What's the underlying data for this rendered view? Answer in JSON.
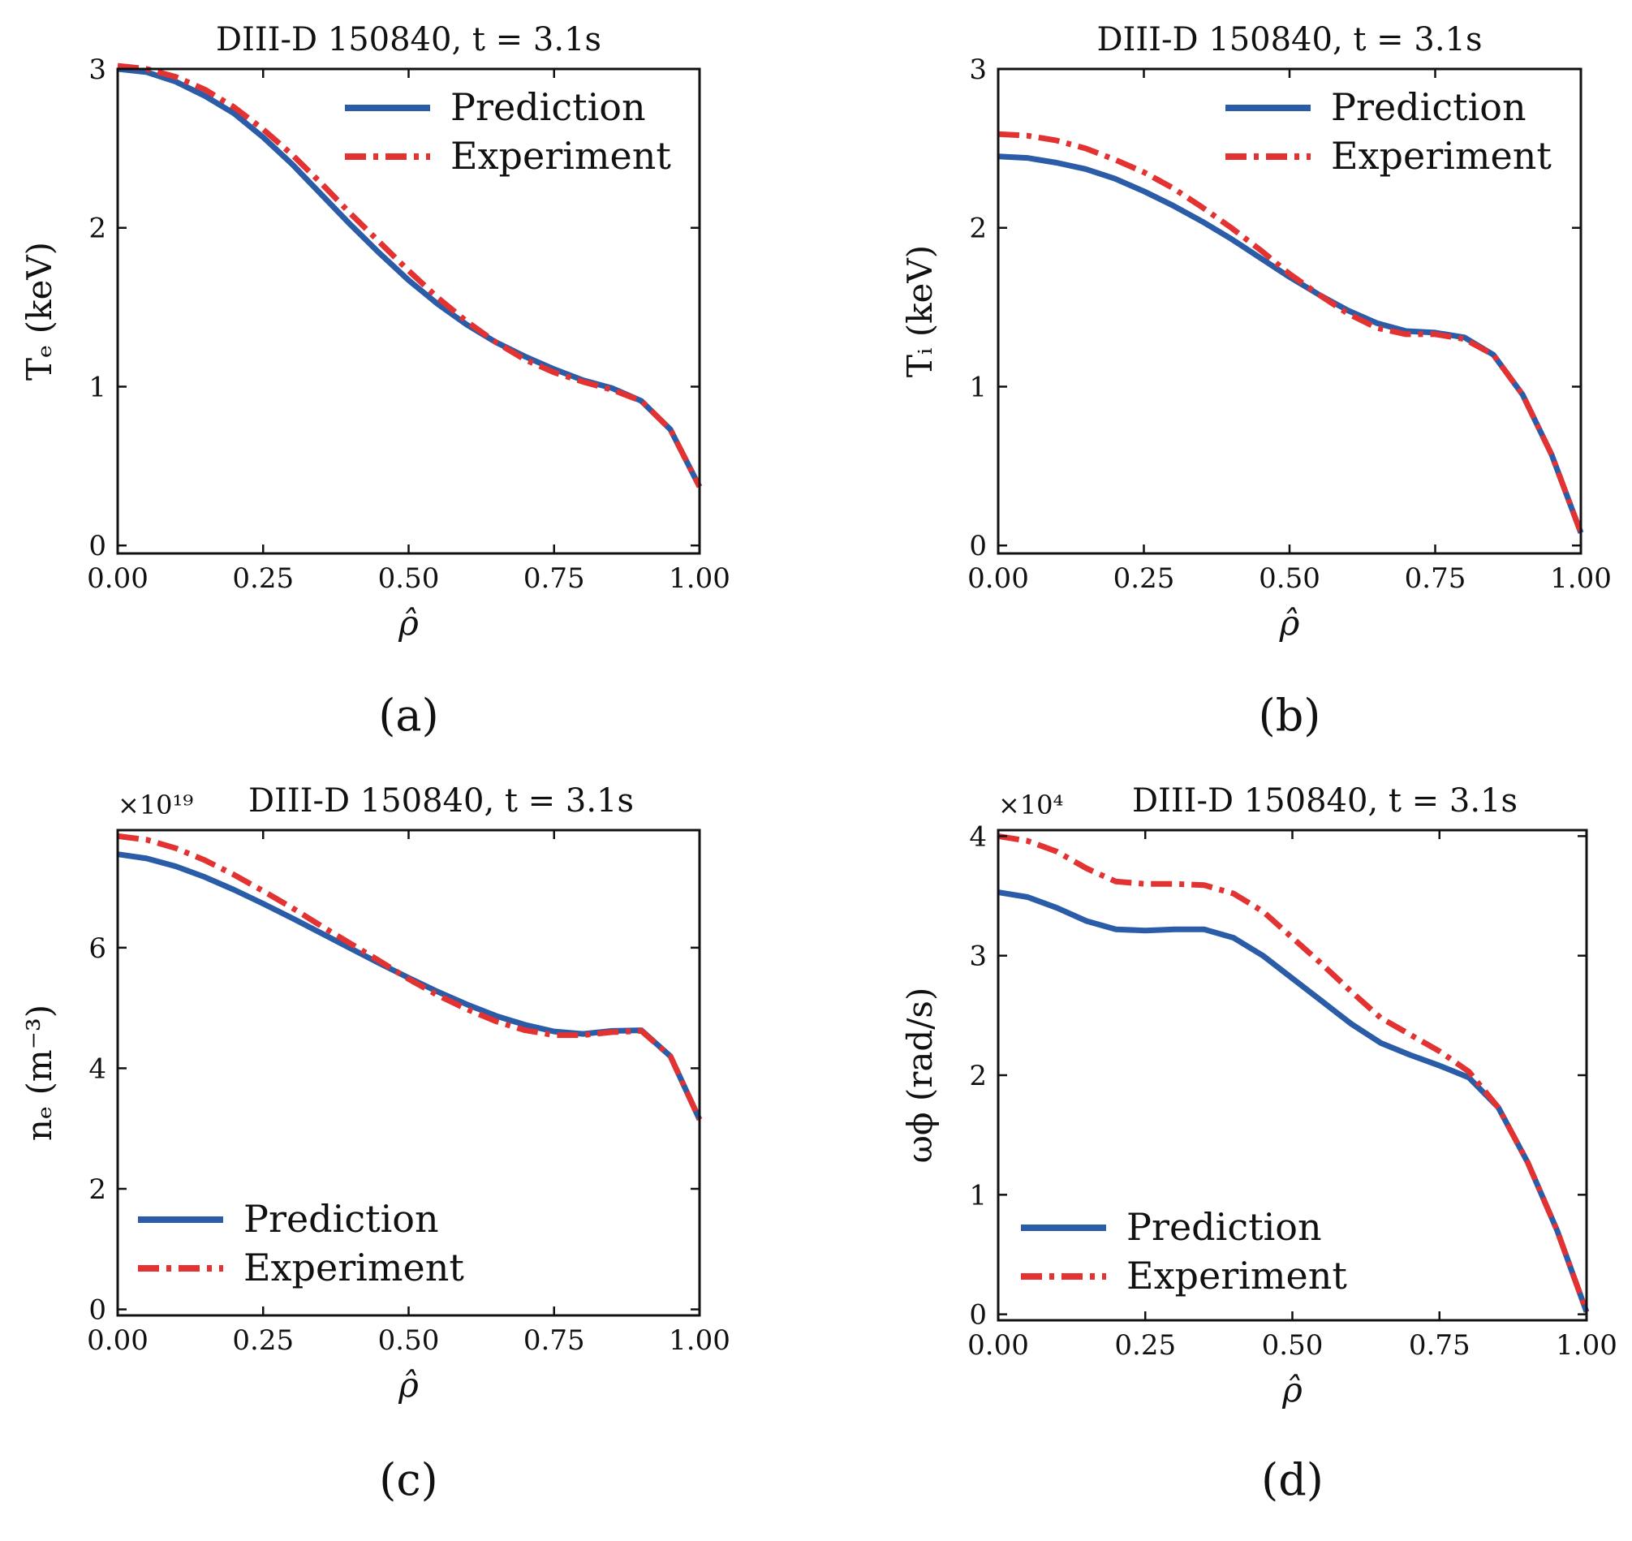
{
  "chart_data": [
    {
      "id": "a",
      "type": "line",
      "title": "DIII-D 150840, t = 3.1s",
      "xlabel": "ρ̂",
      "ylabel": "Tₑ (keV)",
      "multiplier": "",
      "caption": "(a)",
      "legend_pos": "top-right",
      "xlim": [
        0,
        1
      ],
      "ylim": [
        -0.05,
        3
      ],
      "xticks": [
        0,
        0.25,
        0.5,
        0.75,
        1
      ],
      "xtick_labels": [
        "0.00",
        "0.25",
        "0.50",
        "0.75",
        "1.00"
      ],
      "yticks": [
        0,
        1,
        2,
        3
      ],
      "ytick_labels": [
        "0",
        "1",
        "2",
        "3"
      ],
      "series": [
        {
          "name": "Prediction",
          "color": "#2b5ca8",
          "style": "solid",
          "x": [
            0,
            0.05,
            0.1,
            0.15,
            0.2,
            0.25,
            0.3,
            0.35,
            0.4,
            0.45,
            0.5,
            0.55,
            0.6,
            0.65,
            0.7,
            0.75,
            0.8,
            0.85,
            0.9,
            0.95,
            1.0
          ],
          "y": [
            3.0,
            2.98,
            2.92,
            2.83,
            2.72,
            2.57,
            2.4,
            2.21,
            2.02,
            1.84,
            1.67,
            1.52,
            1.39,
            1.28,
            1.19,
            1.11,
            1.04,
            0.99,
            0.91,
            0.73,
            0.37
          ]
        },
        {
          "name": "Experiment",
          "color": "#e23232",
          "style": "dashdot",
          "x": [
            0,
            0.05,
            0.1,
            0.15,
            0.2,
            0.25,
            0.3,
            0.35,
            0.4,
            0.45,
            0.5,
            0.55,
            0.6,
            0.65,
            0.7,
            0.75,
            0.8,
            0.85,
            0.9,
            0.95,
            1.0
          ],
          "y": [
            3.02,
            3.0,
            2.95,
            2.87,
            2.76,
            2.62,
            2.46,
            2.28,
            2.09,
            1.91,
            1.73,
            1.56,
            1.41,
            1.28,
            1.17,
            1.09,
            1.03,
            0.98,
            0.91,
            0.73,
            0.37
          ]
        }
      ]
    },
    {
      "id": "b",
      "type": "line",
      "title": "DIII-D 150840, t = 3.1s",
      "xlabel": "ρ̂",
      "ylabel": "Tᵢ (keV)",
      "multiplier": "",
      "caption": "(b)",
      "legend_pos": "top-right",
      "xlim": [
        0,
        1
      ],
      "ylim": [
        -0.05,
        3
      ],
      "xticks": [
        0,
        0.25,
        0.5,
        0.75,
        1
      ],
      "xtick_labels": [
        "0.00",
        "0.25",
        "0.50",
        "0.75",
        "1.00"
      ],
      "yticks": [
        0,
        1,
        2,
        3
      ],
      "ytick_labels": [
        "0",
        "1",
        "2",
        "3"
      ],
      "series": [
        {
          "name": "Prediction",
          "color": "#2b5ca8",
          "style": "solid",
          "x": [
            0,
            0.05,
            0.1,
            0.15,
            0.2,
            0.25,
            0.3,
            0.35,
            0.4,
            0.45,
            0.5,
            0.55,
            0.6,
            0.65,
            0.7,
            0.75,
            0.8,
            0.85,
            0.9,
            0.95,
            1.0
          ],
          "y": [
            2.45,
            2.44,
            2.41,
            2.37,
            2.31,
            2.23,
            2.14,
            2.04,
            1.93,
            1.81,
            1.69,
            1.58,
            1.48,
            1.4,
            1.35,
            1.34,
            1.31,
            1.2,
            0.95,
            0.57,
            0.08
          ]
        },
        {
          "name": "Experiment",
          "color": "#e23232",
          "style": "dashdot",
          "x": [
            0,
            0.05,
            0.1,
            0.15,
            0.2,
            0.25,
            0.3,
            0.35,
            0.4,
            0.45,
            0.5,
            0.55,
            0.6,
            0.65,
            0.7,
            0.75,
            0.8,
            0.85,
            0.9,
            0.95,
            1.0
          ],
          "y": [
            2.59,
            2.58,
            2.55,
            2.5,
            2.43,
            2.35,
            2.25,
            2.13,
            2.0,
            1.86,
            1.71,
            1.58,
            1.46,
            1.37,
            1.33,
            1.33,
            1.3,
            1.2,
            0.95,
            0.57,
            0.08
          ]
        }
      ]
    },
    {
      "id": "c",
      "type": "line",
      "title": "DIII-D 150840, t = 3.1s",
      "xlabel": "ρ̂",
      "ylabel": "nₑ (m⁻³)",
      "multiplier": "×10¹⁹",
      "caption": "(c)",
      "legend_pos": "bottom-left",
      "xlim": [
        0,
        1
      ],
      "ylim": [
        -0.1,
        7.95
      ],
      "xticks": [
        0,
        0.25,
        0.5,
        0.75,
        1
      ],
      "xtick_labels": [
        "0.00",
        "0.25",
        "0.50",
        "0.75",
        "1.00"
      ],
      "yticks": [
        0,
        2,
        4,
        6
      ],
      "ytick_labels": [
        "0",
        "2",
        "4",
        "6"
      ],
      "series": [
        {
          "name": "Prediction",
          "color": "#2b5ca8",
          "style": "solid",
          "x": [
            0,
            0.05,
            0.1,
            0.15,
            0.2,
            0.25,
            0.3,
            0.35,
            0.4,
            0.45,
            0.5,
            0.55,
            0.6,
            0.65,
            0.7,
            0.75,
            0.8,
            0.85,
            0.9,
            0.95,
            1.0
          ],
          "y": [
            7.55,
            7.48,
            7.35,
            7.17,
            6.96,
            6.73,
            6.49,
            6.24,
            5.99,
            5.74,
            5.5,
            5.27,
            5.06,
            4.87,
            4.72,
            4.61,
            4.57,
            4.62,
            4.63,
            4.2,
            3.15
          ]
        },
        {
          "name": "Experiment",
          "color": "#e23232",
          "style": "dashdot",
          "x": [
            0,
            0.05,
            0.1,
            0.15,
            0.2,
            0.25,
            0.3,
            0.35,
            0.4,
            0.45,
            0.5,
            0.55,
            0.6,
            0.65,
            0.7,
            0.75,
            0.8,
            0.85,
            0.9,
            0.95,
            1.0
          ],
          "y": [
            7.85,
            7.79,
            7.65,
            7.45,
            7.21,
            6.94,
            6.66,
            6.36,
            6.07,
            5.78,
            5.48,
            5.21,
            4.98,
            4.78,
            4.63,
            4.55,
            4.55,
            4.6,
            4.62,
            4.2,
            3.15
          ]
        }
      ]
    },
    {
      "id": "d",
      "type": "line",
      "title": "DIII-D 150840, t = 3.1s",
      "xlabel": "ρ̂",
      "ylabel": "ωϕ (rad/s)",
      "multiplier": "×10⁴",
      "caption": "(d)",
      "legend_pos": "bottom-left",
      "xlim": [
        0,
        1
      ],
      "ylim": [
        -0.05,
        4.05
      ],
      "xticks": [
        0,
        0.25,
        0.5,
        0.75,
        1
      ],
      "xtick_labels": [
        "0.00",
        "0.25",
        "0.50",
        "0.75",
        "1.00"
      ],
      "yticks": [
        0,
        1,
        2,
        3,
        4
      ],
      "ytick_labels": [
        "0",
        "1",
        "2",
        "3",
        "4"
      ],
      "series": [
        {
          "name": "Prediction",
          "color": "#2b5ca8",
          "style": "solid",
          "x": [
            0,
            0.05,
            0.1,
            0.15,
            0.2,
            0.25,
            0.3,
            0.35,
            0.4,
            0.45,
            0.5,
            0.55,
            0.6,
            0.65,
            0.7,
            0.75,
            0.8,
            0.85,
            0.9,
            0.95,
            1.0
          ],
          "y": [
            3.53,
            3.49,
            3.4,
            3.29,
            3.22,
            3.21,
            3.22,
            3.22,
            3.15,
            3.0,
            2.81,
            2.62,
            2.43,
            2.27,
            2.17,
            2.08,
            1.98,
            1.73,
            1.27,
            0.7,
            0.02
          ]
        },
        {
          "name": "Experiment",
          "color": "#e23232",
          "style": "dashdot",
          "x": [
            0,
            0.05,
            0.1,
            0.15,
            0.2,
            0.25,
            0.3,
            0.35,
            0.4,
            0.45,
            0.5,
            0.55,
            0.6,
            0.65,
            0.7,
            0.75,
            0.8,
            0.85,
            0.9,
            0.95,
            1.0
          ],
          "y": [
            4.0,
            3.96,
            3.87,
            3.73,
            3.62,
            3.6,
            3.6,
            3.59,
            3.52,
            3.37,
            3.15,
            2.93,
            2.7,
            2.48,
            2.34,
            2.2,
            2.03,
            1.73,
            1.27,
            0.7,
            0.02
          ]
        }
      ]
    }
  ]
}
